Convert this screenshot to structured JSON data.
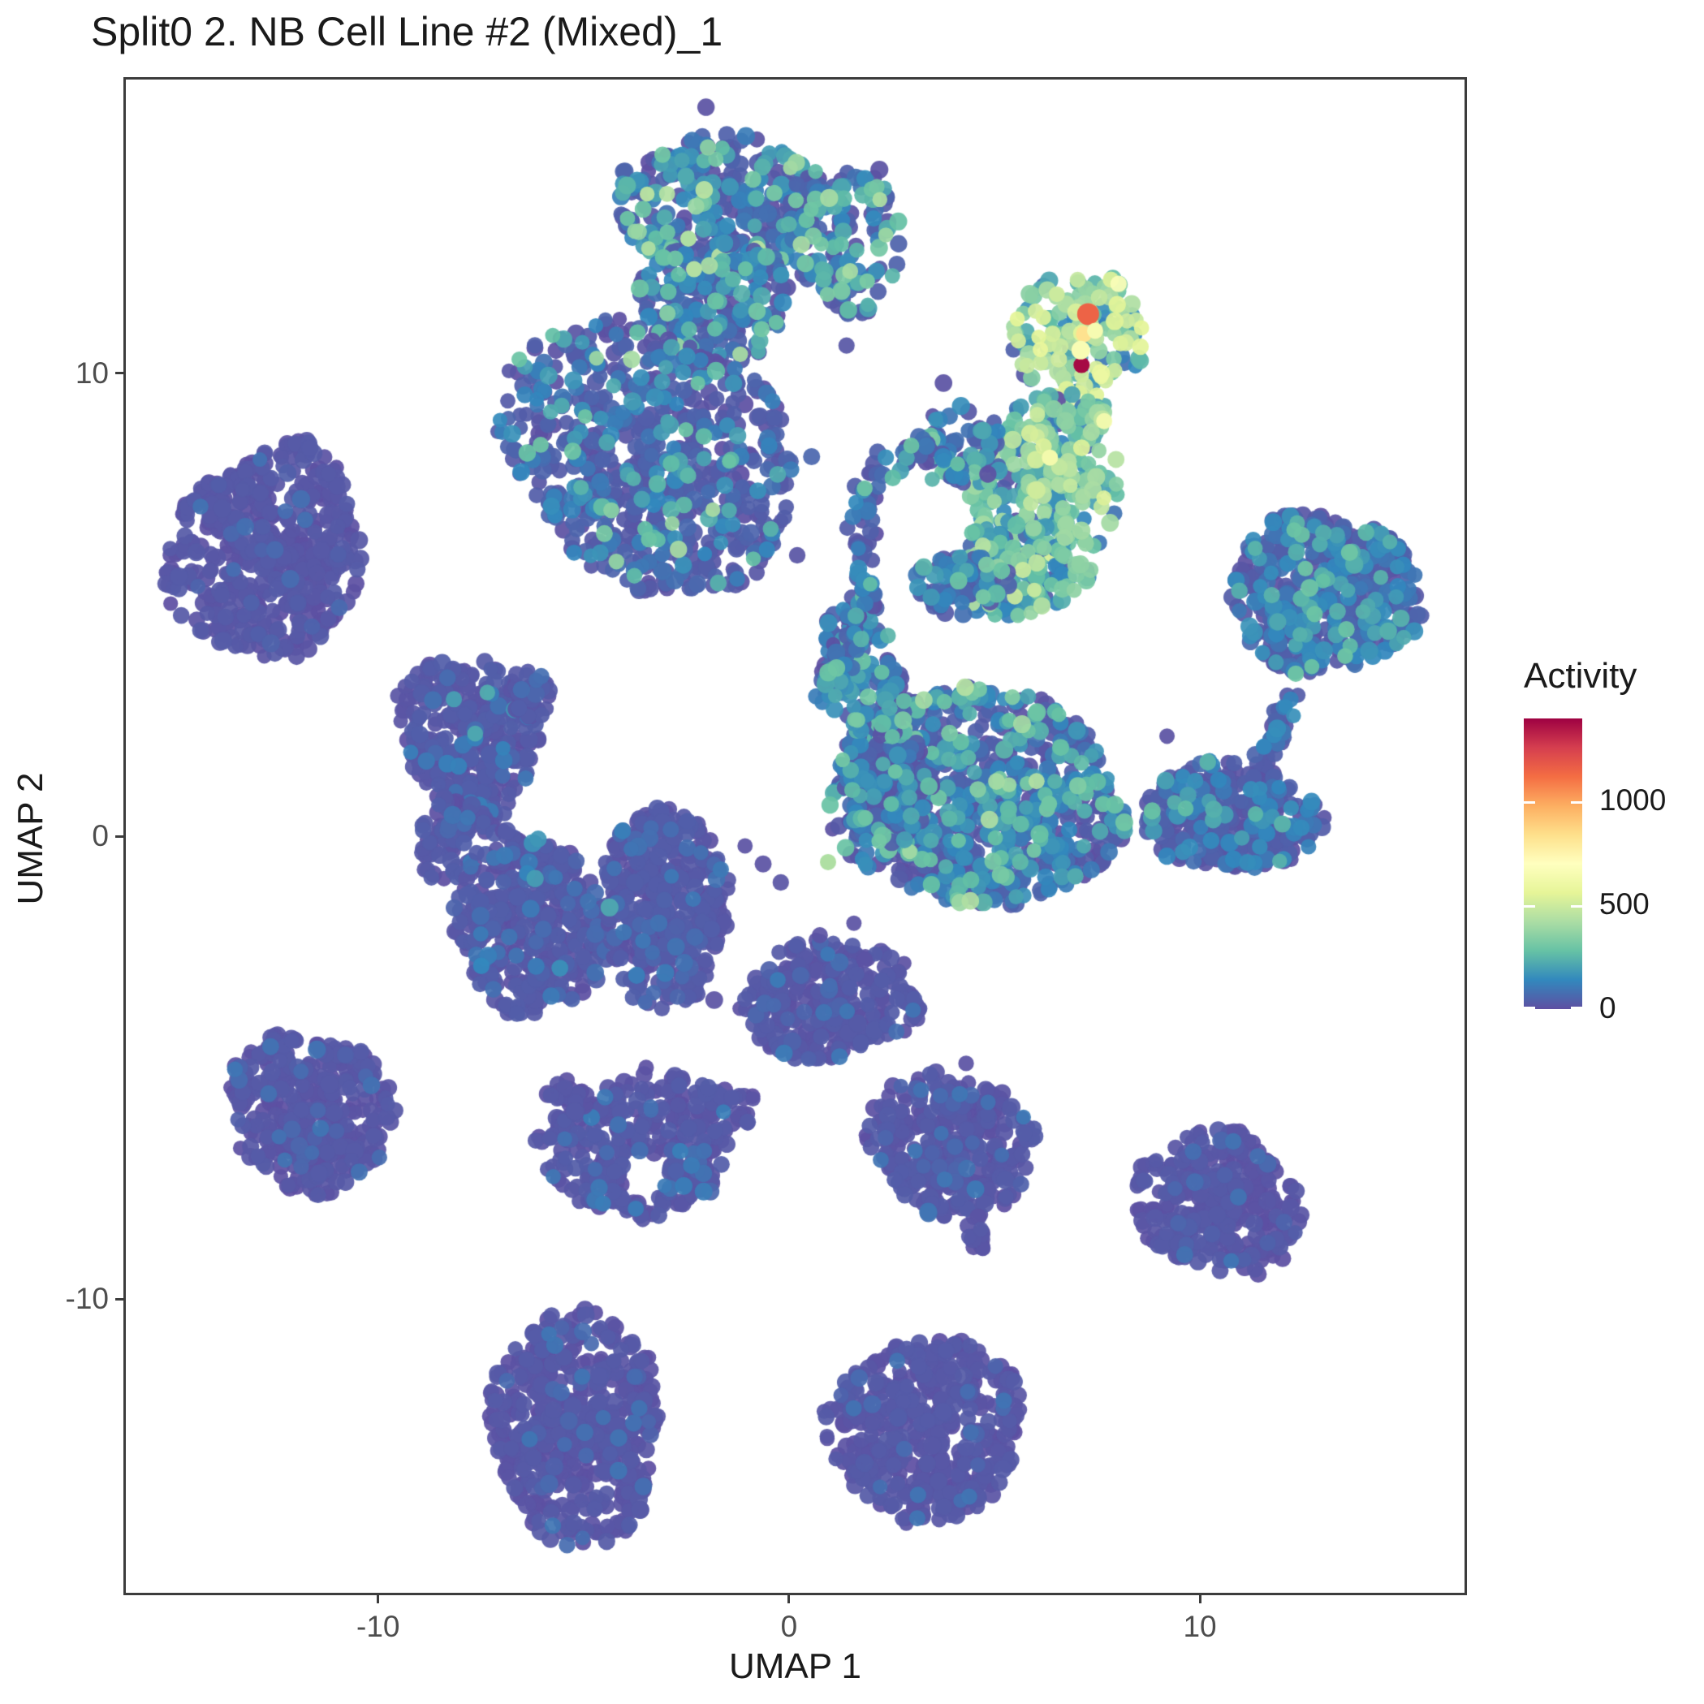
{
  "title": "Split0 2. NB Cell Line #2 (Mixed)_1",
  "axes": {
    "x_label": "UMAP 1",
    "y_label": "UMAP 2",
    "x_ticks": [
      -10,
      0,
      10
    ],
    "y_ticks": [
      10,
      0,
      -10
    ],
    "x_range": [
      -16.2,
      16.5
    ],
    "y_range": [
      -16.4,
      16.4
    ]
  },
  "legend": {
    "title": "Activity",
    "ticks": [
      1000,
      500,
      0
    ],
    "domain": [
      0,
      1400
    ],
    "colormap_name": "spectral-reversed",
    "stops": [
      [
        0.0,
        "#5e4fa2"
      ],
      [
        0.1,
        "#3288bd"
      ],
      [
        0.2,
        "#66c2a5"
      ],
      [
        0.3,
        "#abdda4"
      ],
      [
        0.4,
        "#e6f598"
      ],
      [
        0.5,
        "#ffffbf"
      ],
      [
        0.6,
        "#fee08b"
      ],
      [
        0.7,
        "#fdae61"
      ],
      [
        0.8,
        "#f46d43"
      ],
      [
        0.9,
        "#d53e4f"
      ],
      [
        1.0,
        "#9e0142"
      ]
    ]
  },
  "chart_data": {
    "type": "scatter",
    "title": "Split0 2. NB Cell Line #2 (Mixed)_1",
    "xlabel": "UMAP 1",
    "ylabel": "UMAP 2",
    "color_label": "Activity",
    "xlim": [
      -16.2,
      16.5
    ],
    "ylim": [
      -16.4,
      16.4
    ],
    "color_domain": [
      0,
      1400
    ],
    "point_radius_px": 10,
    "clusters": [
      {
        "name": "top-cap-main",
        "type": "ellipse",
        "cx": -1.72,
        "cy": 13.65,
        "rx": 2.37,
        "ry": 1.58,
        "rot": -10,
        "lobe": 0.14,
        "n": 330,
        "mix": [
          [
            0.5,
            0,
            55
          ],
          [
            0.3,
            70,
            190
          ],
          [
            0.17,
            200,
            330
          ],
          [
            0.03,
            340,
            470
          ]
        ]
      },
      {
        "name": "top-cap-east",
        "type": "ellipse",
        "cx": 1.35,
        "cy": 12.95,
        "rx": 1.29,
        "ry": 1.75,
        "rot": 15,
        "lobe": 0.16,
        "n": 150,
        "mix": [
          [
            0.45,
            0,
            55
          ],
          [
            0.35,
            70,
            190
          ],
          [
            0.18,
            200,
            330
          ],
          [
            0.02,
            340,
            450
          ]
        ]
      },
      {
        "name": "stem",
        "type": "ellipse",
        "cx": -1.82,
        "cy": 11.54,
        "rx": 1.98,
        "ry": 1.32,
        "rot": 0,
        "lobe": 0.13,
        "n": 220,
        "mix": [
          [
            0.6,
            0,
            55
          ],
          [
            0.27,
            70,
            180
          ],
          [
            0.11,
            190,
            310
          ],
          [
            0.02,
            320,
            430
          ]
        ]
      },
      {
        "name": "head",
        "type": "ellipse",
        "cx": -3.4,
        "cy": 8.21,
        "rx": 3.56,
        "ry": 2.89,
        "rot": -20,
        "lobe": 0.12,
        "n": 700,
        "mix": [
          [
            0.7,
            0,
            55
          ],
          [
            0.2,
            60,
            170
          ],
          [
            0.09,
            180,
            300
          ],
          [
            0.01,
            310,
            420
          ]
        ]
      },
      {
        "name": "activity-head",
        "type": "ellipse",
        "cx": 7.08,
        "cy": 10.67,
        "rx": 1.48,
        "ry": 1.67,
        "rot": 8,
        "lobe": 0.14,
        "n": 160,
        "mix": [
          [
            0.05,
            0,
            50
          ],
          [
            0.1,
            60,
            150
          ],
          [
            0.25,
            160,
            300
          ],
          [
            0.33,
            310,
            460
          ],
          [
            0.22,
            470,
            560
          ],
          [
            0.05,
            570,
            680
          ]
        ]
      },
      {
        "name": "activity-body",
        "type": "ellipse",
        "cx": 6.29,
        "cy": 7.68,
        "rx": 1.78,
        "ry": 1.93,
        "rot": 0,
        "lobe": 0.13,
        "n": 260,
        "mix": [
          [
            0.08,
            0,
            80
          ],
          [
            0.15,
            90,
            180
          ],
          [
            0.35,
            190,
            300
          ],
          [
            0.3,
            310,
            430
          ],
          [
            0.1,
            440,
            540
          ],
          [
            0.02,
            550,
            640
          ]
        ]
      },
      {
        "name": "activity-neck",
        "type": "ellipse",
        "cx": 4.21,
        "cy": 8.47,
        "rx": 1.09,
        "ry": 0.79,
        "rot": -15,
        "lobe": 0.15,
        "n": 60,
        "mix": [
          [
            0.45,
            0,
            60
          ],
          [
            0.4,
            70,
            180
          ],
          [
            0.15,
            190,
            330
          ]
        ]
      },
      {
        "name": "activity-bottom",
        "type": "ellipse",
        "cx": 5.6,
        "cy": 5.75,
        "rx": 1.68,
        "ry": 1.05,
        "rot": -10,
        "lobe": 0.14,
        "n": 170,
        "mix": [
          [
            0.2,
            0,
            70
          ],
          [
            0.4,
            80,
            220
          ],
          [
            0.3,
            230,
            380
          ],
          [
            0.1,
            390,
            500
          ]
        ]
      },
      {
        "name": "activity-tail",
        "type": "ellipse",
        "cx": 4.11,
        "cy": 5.4,
        "rx": 1.19,
        "ry": 0.7,
        "rot": 10,
        "lobe": 0.14,
        "n": 80,
        "mix": [
          [
            0.5,
            0,
            60
          ],
          [
            0.35,
            70,
            190
          ],
          [
            0.15,
            200,
            340
          ]
        ]
      },
      {
        "name": "left-cluster",
        "type": "ellipse",
        "cx": -12.7,
        "cy": 6.11,
        "rx": 2.24,
        "ry": 2.42,
        "rot": 15,
        "lobe": 0.16,
        "n": 520,
        "mix": [
          [
            0.95,
            0,
            30
          ],
          [
            0.05,
            35,
            90
          ]
        ]
      },
      {
        "name": "mid-left-cluster",
        "type": "ellipse",
        "cx": -7.79,
        "cy": 2.16,
        "rx": 1.74,
        "ry": 1.67,
        "rot": -30,
        "lobe": 0.15,
        "n": 330,
        "mix": [
          [
            0.88,
            0,
            40
          ],
          [
            0.1,
            50,
            130
          ],
          [
            0.02,
            140,
            240
          ]
        ]
      },
      {
        "name": "mid-left-tip",
        "type": "ellipse",
        "cx": -6.27,
        "cy": 3.04,
        "rx": 0.6,
        "ry": 0.5,
        "rot": -35,
        "lobe": 0.1,
        "n": 40,
        "mix": [
          [
            0.9,
            0,
            40
          ],
          [
            0.1,
            50,
            120
          ]
        ]
      },
      {
        "name": "bridge-midleft-lobes",
        "type": "ellipse",
        "cx": -8.15,
        "cy": -0.04,
        "rx": 0.9,
        "ry": 1.0,
        "rot": 0,
        "lobe": 0.12,
        "n": 80,
        "mix": [
          [
            0.92,
            0,
            40
          ],
          [
            0.08,
            50,
            120
          ]
        ]
      },
      {
        "name": "two-lobe-left",
        "type": "ellipse",
        "cx": -6.27,
        "cy": -1.88,
        "rx": 1.78,
        "ry": 2.11,
        "rot": 5,
        "lobe": 0.13,
        "n": 420,
        "mix": [
          [
            0.9,
            0,
            40
          ],
          [
            0.09,
            45,
            120
          ],
          [
            0.01,
            130,
            220
          ]
        ]
      },
      {
        "name": "two-lobe-right",
        "type": "ellipse",
        "cx": -3.01,
        "cy": -1.53,
        "rx": 1.48,
        "ry": 2.25,
        "rot": 10,
        "lobe": 0.13,
        "n": 400,
        "mix": [
          [
            0.9,
            0,
            40
          ],
          [
            0.09,
            45,
            120
          ],
          [
            0.01,
            130,
            220
          ]
        ]
      },
      {
        "name": "central-cluster",
        "type": "ellipse",
        "cx": 4.61,
        "cy": 0.84,
        "rx": 3.66,
        "ry": 2.28,
        "rot": -10,
        "lobe": 0.12,
        "n": 850,
        "mix": [
          [
            0.55,
            0,
            55
          ],
          [
            0.28,
            70,
            180
          ],
          [
            0.15,
            190,
            320
          ],
          [
            0.02,
            330,
            450
          ]
        ]
      },
      {
        "name": "central-west-bulge",
        "type": "ellipse",
        "cx": 2.33,
        "cy": 1.19,
        "rx": 1.2,
        "ry": 1.3,
        "rot": 0,
        "lobe": 0.13,
        "n": 200,
        "mix": [
          [
            0.62,
            0,
            55
          ],
          [
            0.28,
            70,
            180
          ],
          [
            0.1,
            190,
            310
          ]
        ]
      },
      {
        "name": "central-arm",
        "type": "ellipse",
        "cx": 1.84,
        "cy": 3.65,
        "rx": 0.85,
        "ry": 1.75,
        "rot": 15,
        "lobe": 0.12,
        "n": 150,
        "mix": [
          [
            0.5,
            0,
            60
          ],
          [
            0.35,
            70,
            190
          ],
          [
            0.15,
            200,
            330
          ]
        ]
      },
      {
        "name": "hook-arc",
        "type": "path",
        "w": 0.42,
        "n": 130,
        "pts": [
          [
            4.61,
            7.6
          ],
          [
            3.13,
            8.3
          ],
          [
            2.14,
            8.0
          ],
          [
            1.7,
            6.81
          ],
          [
            1.9,
            5.32
          ],
          [
            1.38,
            4.0
          ],
          [
            0.85,
            2.91
          ]
        ],
        "mix": [
          [
            0.55,
            0,
            55
          ],
          [
            0.33,
            60,
            170
          ],
          [
            0.12,
            180,
            300
          ]
        ]
      },
      {
        "name": "right-cluster",
        "type": "ellipse",
        "cx": 13.02,
        "cy": 5.23,
        "rx": 2.18,
        "ry": 1.84,
        "rot": 10,
        "lobe": 0.14,
        "n": 520,
        "mix": [
          [
            0.62,
            0,
            55
          ],
          [
            0.28,
            60,
            170
          ],
          [
            0.1,
            180,
            300
          ]
        ]
      },
      {
        "name": "right-tail",
        "type": "path",
        "w": 0.34,
        "n": 45,
        "pts": [
          [
            12.26,
            3.21
          ],
          [
            11.87,
            2.16
          ],
          [
            11.47,
            1.28
          ],
          [
            11.24,
            0.75
          ]
        ],
        "mix": [
          [
            0.7,
            0,
            55
          ],
          [
            0.3,
            60,
            160
          ]
        ]
      },
      {
        "name": "right-sub-blob",
        "type": "ellipse",
        "cx": 10.74,
        "cy": 0.4,
        "rx": 2.27,
        "ry": 1.14,
        "rot": -8,
        "lobe": 0.14,
        "n": 300,
        "mix": [
          [
            0.7,
            0,
            50
          ],
          [
            0.24,
            60,
            160
          ],
          [
            0.06,
            170,
            290
          ]
        ]
      },
      {
        "name": "center-small-blob",
        "type": "ellipse",
        "cx": 0.95,
        "cy": -3.54,
        "rx": 2.08,
        "ry": 1.4,
        "rot": 0,
        "lobe": 0.15,
        "n": 300,
        "mix": [
          [
            0.93,
            0,
            35
          ],
          [
            0.07,
            40,
            110
          ]
        ]
      },
      {
        "name": "lower-left-cluster",
        "type": "ellipse",
        "cx": -11.63,
        "cy": -5.96,
        "rx": 1.9,
        "ry": 1.84,
        "rot": 0,
        "lobe": 0.16,
        "n": 380,
        "mix": [
          [
            0.94,
            0,
            30
          ],
          [
            0.06,
            35,
            100
          ]
        ]
      },
      {
        "name": "triangle-cluster",
        "type": "polygon",
        "n": 330,
        "verts": [
          [
            -6.41,
            -6.53
          ],
          [
            -3.5,
            -4.98
          ],
          [
            -0.73,
            -5.68
          ],
          [
            -1.92,
            -7.72
          ],
          [
            -3.4,
            -8.37
          ],
          [
            -5.38,
            -7.79
          ]
        ],
        "holes": [
          [
            -3.5,
            -7.32,
            0.55
          ]
        ],
        "mix": [
          [
            0.92,
            0,
            35
          ],
          [
            0.08,
            40,
            120
          ]
        ]
      },
      {
        "name": "mini-heart",
        "type": "ellipse",
        "cx": -5.38,
        "cy": -5.6,
        "rx": 0.5,
        "ry": 0.4,
        "rot": 0,
        "lobe": 0.1,
        "n": 25,
        "mix": [
          [
            1.0,
            0,
            30
          ]
        ]
      },
      {
        "name": "mitten-cluster",
        "type": "ellipse",
        "cx": 3.96,
        "cy": -6.67,
        "rx": 1.88,
        "ry": 1.67,
        "rot": 0,
        "lobe": 0.16,
        "n": 330,
        "mix": [
          [
            0.93,
            0,
            35
          ],
          [
            0.07,
            40,
            110
          ]
        ]
      },
      {
        "name": "mitten-tail",
        "type": "path",
        "w": 0.26,
        "n": 15,
        "pts": [
          [
            4.61,
            -8.37
          ],
          [
            4.51,
            -8.98
          ]
        ],
        "mix": [
          [
            1.0,
            0,
            30
          ]
        ]
      },
      {
        "name": "lower-right-cluster",
        "type": "ellipse",
        "cx": 10.41,
        "cy": -7.93,
        "rx": 1.98,
        "ry": 1.61,
        "rot": 0,
        "lobe": 0.15,
        "n": 330,
        "mix": [
          [
            0.94,
            0,
            30
          ],
          [
            0.06,
            35,
            100
          ]
        ]
      },
      {
        "name": "bottom-left-cluster",
        "type": "ellipse",
        "cx": -5.18,
        "cy": -12.75,
        "rx": 2.22,
        "ry": 2.37,
        "rot": 5,
        "lobe": 0.14,
        "n": 520,
        "mix": [
          [
            0.94,
            0,
            30
          ],
          [
            0.06,
            35,
            100
          ]
        ]
      },
      {
        "name": "bottom-center-cluster",
        "type": "ellipse",
        "cx": 3.32,
        "cy": -12.81,
        "rx": 2.29,
        "ry": 2.07,
        "rot": -25,
        "lobe": 0.14,
        "n": 480,
        "mix": [
          [
            0.94,
            0,
            30
          ],
          [
            0.06,
            35,
            100
          ]
        ]
      },
      {
        "name": "stray-points",
        "type": "points",
        "pts": [
          [
            3.76,
            9.79,
            10
          ],
          [
            0.2,
            6.07,
            15
          ],
          [
            1.4,
            10.6,
            20
          ],
          [
            2.2,
            14.4,
            10
          ],
          [
            -2.02,
            15.75,
            10
          ],
          [
            0.55,
            8.2,
            60
          ],
          [
            -0.63,
            -0.6,
            10
          ],
          [
            -0.2,
            -1.0,
            15
          ],
          [
            -1.07,
            -0.21,
            10
          ],
          [
            1.58,
            -1.88,
            10
          ],
          [
            1.84,
            -2.67,
            10
          ],
          [
            0.75,
            -2.14,
            10
          ],
          [
            -1.82,
            -3.54,
            10
          ],
          [
            4.31,
            -4.91,
            10
          ],
          [
            9.2,
            2.16,
            10
          ]
        ]
      }
    ],
    "highlight_points": [
      {
        "x": 7.28,
        "y": 11.28,
        "activity": 1150,
        "size": 1.35,
        "note": "red"
      },
      {
        "x": 7.12,
        "y": 10.18,
        "activity": 1380,
        "size": 1.0,
        "note": "dark-crimson"
      },
      {
        "x": 7.18,
        "y": 10.85,
        "activity": 830,
        "size": 1.0,
        "note": "orange"
      },
      {
        "x": 7.45,
        "y": 10.92,
        "activity": 650,
        "size": 1.0,
        "note": "yellow-orange"
      },
      {
        "x": 7.1,
        "y": 10.5,
        "activity": 660,
        "size": 1.15,
        "note": "pale-yellow"
      },
      {
        "x": 6.35,
        "y": 8.18,
        "activity": 630,
        "size": 1.0,
        "note": "pale-yellow"
      },
      {
        "x": -2.45,
        "y": 12.91,
        "activity": 430,
        "size": 1.0,
        "note": "light-green"
      },
      {
        "x": -2.31,
        "y": 12.25,
        "activity": 440,
        "size": 1.0,
        "note": "light-green"
      },
      {
        "x": 0.95,
        "y": -0.56,
        "activity": 430,
        "size": 1.0,
        "note": "green"
      },
      {
        "x": 6.33,
        "y": 0.7,
        "activity": 300,
        "size": 1.0,
        "note": "teal"
      }
    ]
  }
}
